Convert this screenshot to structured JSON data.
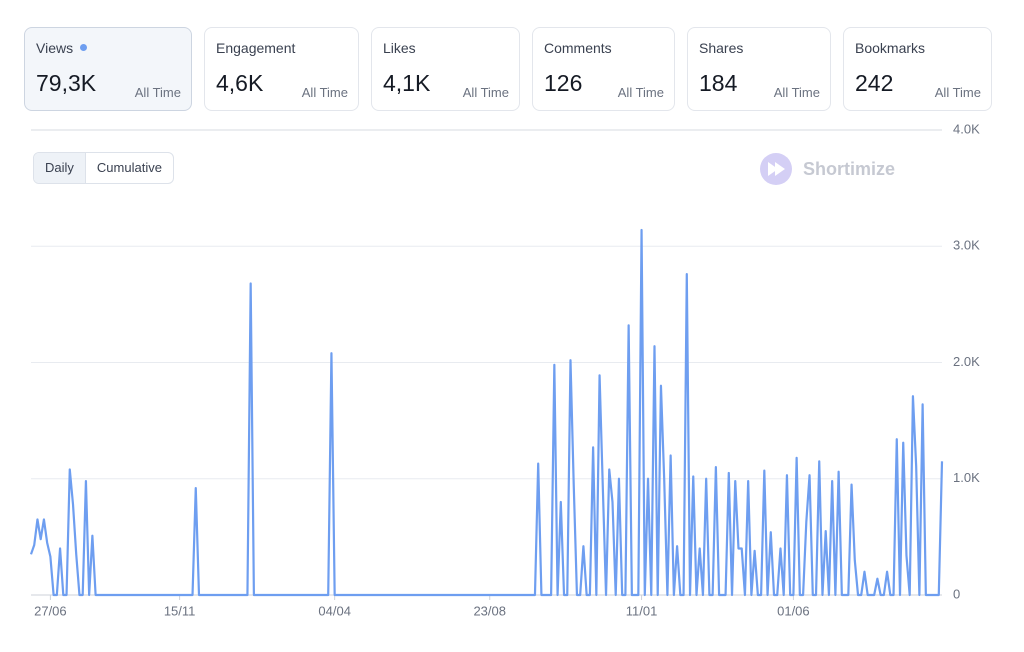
{
  "cards": [
    {
      "label": "Views",
      "value": "79,3K",
      "period": "All Time"
    },
    {
      "label": "Engagement",
      "value": "4,6K",
      "period": "All Time"
    },
    {
      "label": "Likes",
      "value": "4,1K",
      "period": "All Time"
    },
    {
      "label": "Comments",
      "value": "126",
      "period": "All Time"
    },
    {
      "label": "Shares",
      "value": "184",
      "period": "All Time"
    },
    {
      "label": "Bookmarks",
      "value": "242",
      "period": "All Time"
    }
  ],
  "toggles": [
    "Daily",
    "Cumulative"
  ],
  "watermark": "Shortimize",
  "chart_data": {
    "type": "line",
    "color": "#6e9ef0",
    "grid": true,
    "ylim": [
      0,
      4000
    ],
    "yticks": [
      0,
      {
        "value": 1000,
        "label": "1.0K"
      },
      {
        "value": 2000,
        "label": "2.0K"
      },
      {
        "value": 3000,
        "label": "3.0K"
      },
      {
        "value": 4000,
        "label": "4.0K"
      }
    ],
    "categories": [
      null,
      null,
      null,
      null,
      null,
      null,
      "27/06",
      null,
      null,
      null,
      null,
      null,
      null,
      null,
      null,
      null,
      null,
      null,
      null,
      null,
      null,
      null,
      null,
      null,
      null,
      null,
      null,
      null,
      null,
      null,
      null,
      null,
      null,
      null,
      null,
      null,
      null,
      null,
      null,
      null,
      null,
      null,
      null,
      null,
      null,
      null,
      "15/11",
      null,
      null,
      null,
      null,
      null,
      null,
      null,
      null,
      null,
      null,
      null,
      null,
      null,
      null,
      null,
      null,
      null,
      null,
      null,
      null,
      null,
      null,
      null,
      null,
      null,
      null,
      null,
      null,
      null,
      null,
      null,
      null,
      null,
      null,
      null,
      null,
      null,
      null,
      null,
      null,
      null,
      null,
      null,
      null,
      null,
      null,
      null,
      "04/04",
      null,
      null,
      null,
      null,
      null,
      null,
      null,
      null,
      null,
      null,
      null,
      null,
      null,
      null,
      null,
      null,
      null,
      null,
      null,
      null,
      null,
      null,
      null,
      null,
      null,
      null,
      null,
      null,
      null,
      null,
      null,
      null,
      null,
      null,
      null,
      null,
      null,
      null,
      null,
      null,
      null,
      null,
      null,
      null,
      null,
      null,
      null,
      "23/08",
      null,
      null,
      null,
      null,
      null,
      null,
      null,
      null,
      null,
      null,
      null,
      null,
      null,
      null,
      null,
      null,
      null,
      null,
      null,
      null,
      null,
      null,
      null,
      null,
      null,
      null,
      null,
      null,
      null,
      null,
      null,
      null,
      null,
      null,
      null,
      null,
      null,
      null,
      null,
      null,
      null,
      null,
      null,
      null,
      null,
      null,
      "11/01",
      null,
      null,
      null,
      null,
      null,
      null,
      null,
      null,
      null,
      null,
      null,
      null,
      null,
      null,
      null,
      null,
      null,
      null,
      null,
      null,
      null,
      null,
      null,
      null,
      null,
      null,
      null,
      null,
      null,
      null,
      null,
      null,
      null,
      null,
      null,
      null,
      null,
      null,
      null,
      null,
      null,
      null,
      null,
      null,
      null,
      null,
      "01/06",
      null,
      null,
      null,
      null,
      null,
      null,
      null,
      null,
      null,
      null,
      null,
      null,
      null,
      null,
      null,
      null,
      null,
      null,
      null,
      null,
      null,
      null,
      null,
      null,
      null,
      null,
      null,
      null,
      null,
      null,
      null,
      null,
      null,
      null,
      null,
      null,
      null,
      null,
      null,
      null,
      null,
      null,
      null,
      null,
      null,
      null
    ],
    "values": [
      350,
      430,
      650,
      480,
      650,
      450,
      330,
      0,
      0,
      400,
      0,
      0,
      1080,
      780,
      350,
      0,
      0,
      980,
      0,
      510,
      0,
      0,
      0,
      0,
      0,
      0,
      0,
      0,
      0,
      0,
      0,
      0,
      0,
      0,
      0,
      0,
      0,
      0,
      0,
      0,
      0,
      0,
      0,
      0,
      0,
      0,
      0,
      0,
      0,
      0,
      0,
      920,
      0,
      0,
      0,
      0,
      0,
      0,
      0,
      0,
      0,
      0,
      0,
      0,
      0,
      0,
      0,
      0,
      2680,
      0,
      0,
      0,
      0,
      0,
      0,
      0,
      0,
      0,
      0,
      0,
      0,
      0,
      0,
      0,
      0,
      0,
      0,
      0,
      0,
      0,
      0,
      0,
      0,
      2080,
      0,
      0,
      0,
      0,
      0,
      0,
      0,
      0,
      0,
      0,
      0,
      0,
      0,
      0,
      0,
      0,
      0,
      0,
      0,
      0,
      0,
      0,
      0,
      0,
      0,
      0,
      0,
      0,
      0,
      0,
      0,
      0,
      0,
      0,
      0,
      0,
      0,
      0,
      0,
      0,
      0,
      0,
      0,
      0,
      0,
      0,
      0,
      0,
      0,
      0,
      0,
      0,
      0,
      0,
      0,
      0,
      0,
      0,
      0,
      0,
      0,
      0,
      0,
      1130,
      0,
      0,
      0,
      0,
      1980,
      0,
      800,
      0,
      0,
      2020,
      950,
      0,
      0,
      420,
      0,
      0,
      1270,
      0,
      1890,
      930,
      0,
      1080,
      800,
      0,
      1000,
      0,
      0,
      2320,
      0,
      0,
      0,
      3140,
      0,
      1000,
      0,
      2140,
      0,
      1800,
      1000,
      0,
      1200,
      0,
      420,
      0,
      0,
      2760,
      0,
      1020,
      0,
      400,
      0,
      1000,
      0,
      0,
      1100,
      0,
      0,
      0,
      1050,
      0,
      980,
      400,
      400,
      0,
      980,
      0,
      380,
      0,
      0,
      1070,
      0,
      540,
      0,
      0,
      400,
      0,
      1030,
      0,
      0,
      1180,
      0,
      0,
      630,
      1030,
      0,
      0,
      1150,
      0,
      550,
      0,
      980,
      0,
      1060,
      0,
      0,
      0,
      950,
      300,
      0,
      0,
      200,
      0,
      0,
      0,
      140,
      0,
      0,
      200,
      0,
      0,
      1340,
      0,
      1310,
      340,
      0,
      1710,
      1110,
      0,
      1640,
      0,
      0,
      0,
      0,
      0,
      1150
    ]
  }
}
